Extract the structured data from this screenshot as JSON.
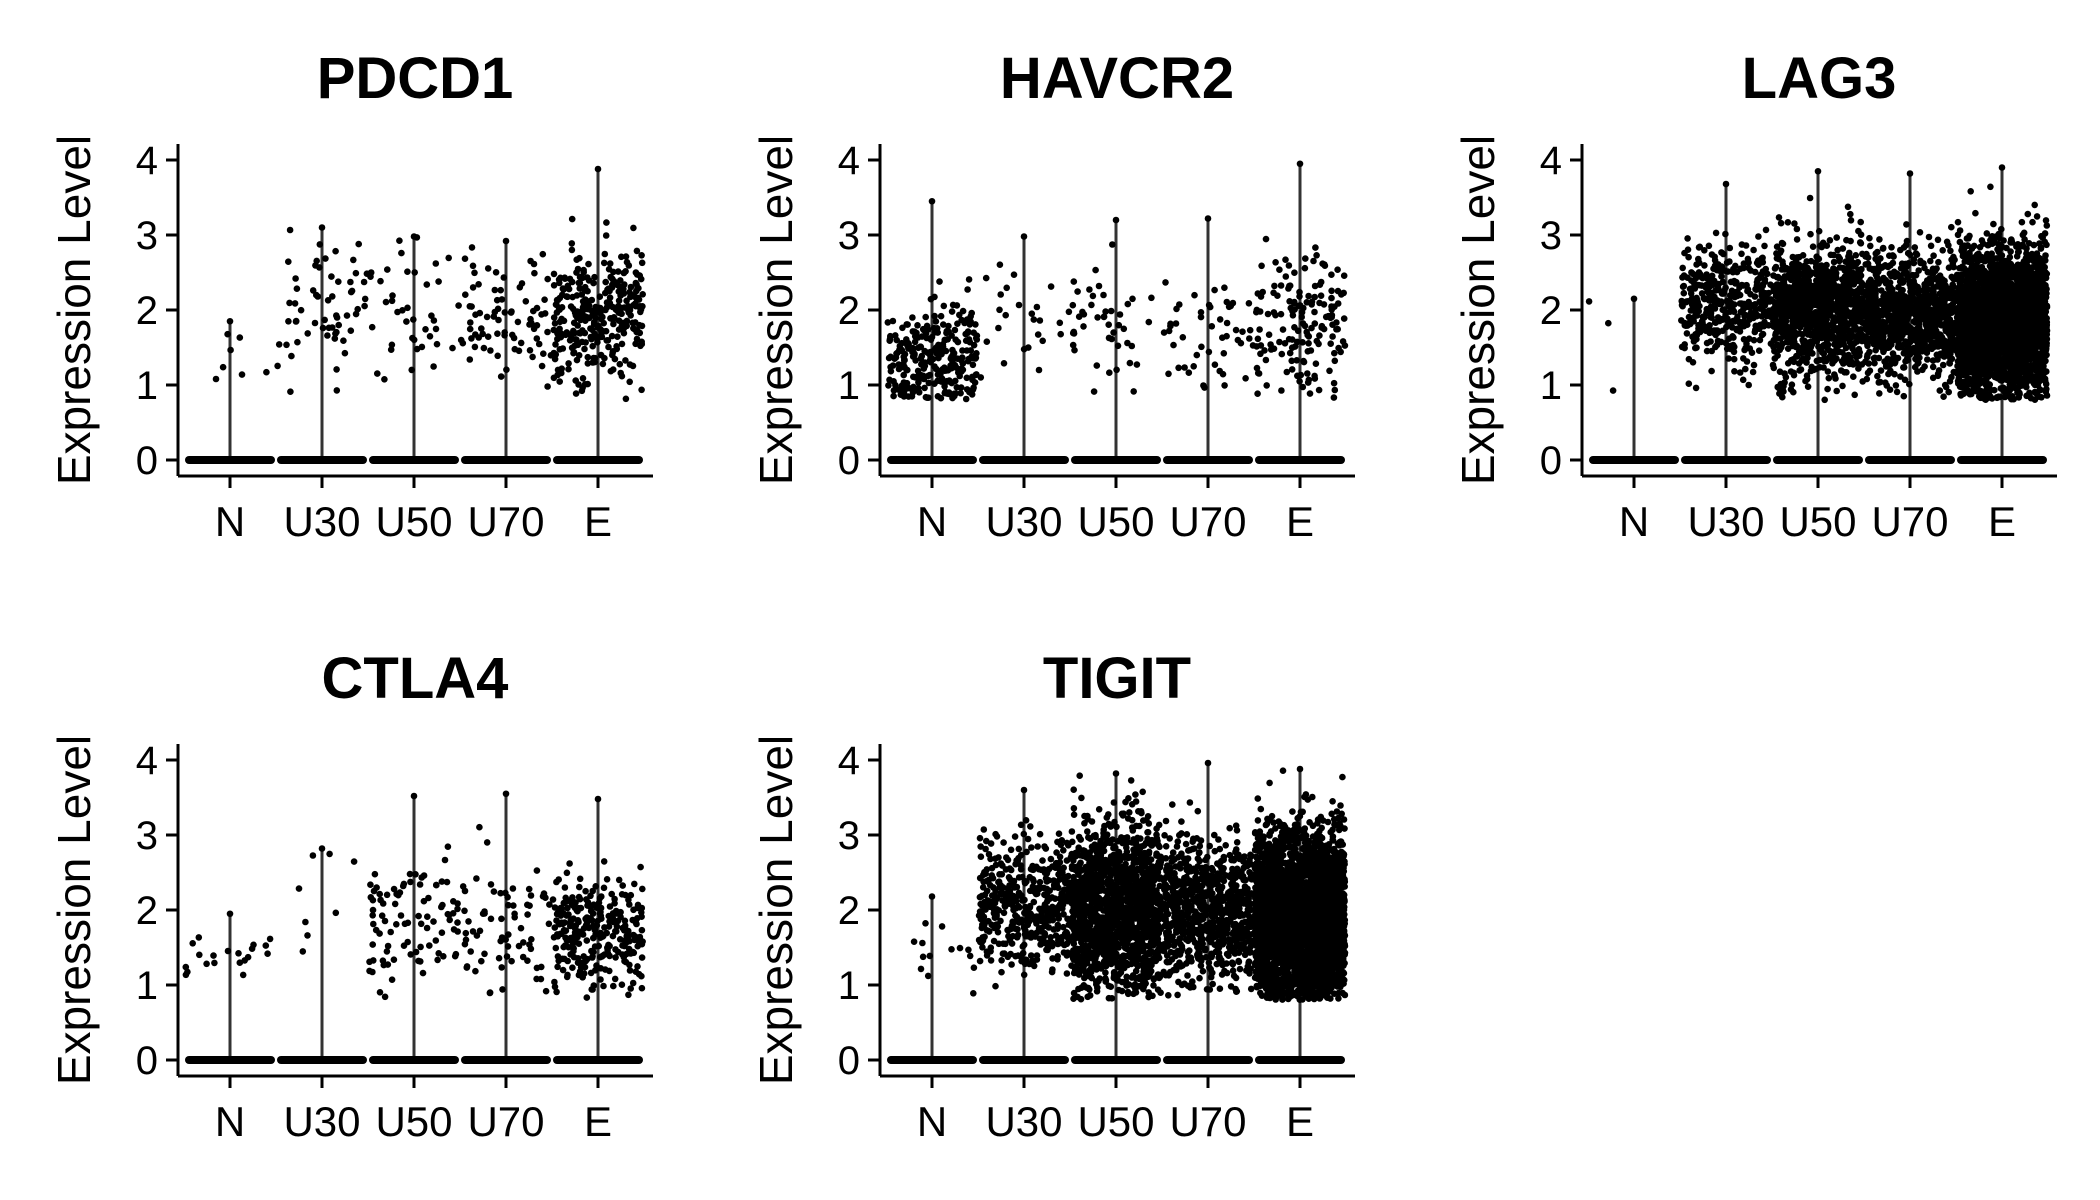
{
  "chart_data": [
    {
      "type": "scatter",
      "title": "PDCD1",
      "xlabel": "",
      "ylabel": "Expression Level",
      "categories": [
        "N",
        "U30",
        "U50",
        "U70",
        "E"
      ],
      "ylim": [
        0,
        4
      ],
      "yticks": [
        0,
        1,
        2,
        3,
        4
      ],
      "grid": false,
      "max": [
        1.85,
        3.1,
        2.98,
        2.92,
        3.88
      ],
      "positive": [
        {
          "count": 7,
          "center": 1.4,
          "spread": 0.25
        },
        {
          "count": 60,
          "center": 2.0,
          "spread": 0.45
        },
        {
          "count": 40,
          "center": 1.85,
          "spread": 0.5
        },
        {
          "count": 80,
          "center": 1.95,
          "spread": 0.4
        },
        {
          "count": 320,
          "center": 1.95,
          "spread": 0.45
        }
      ]
    },
    {
      "type": "scatter",
      "title": "HAVCR2",
      "xlabel": "",
      "ylabel": "Expression Level",
      "categories": [
        "N",
        "U30",
        "U50",
        "U70",
        "E"
      ],
      "ylim": [
        0,
        4
      ],
      "yticks": [
        0,
        1,
        2,
        3,
        4
      ],
      "grid": false,
      "max": [
        3.45,
        2.98,
        3.2,
        3.22,
        3.95
      ],
      "positive": [
        {
          "count": 280,
          "center": 1.35,
          "spread": 0.35
        },
        {
          "count": 25,
          "center": 1.9,
          "spread": 0.4
        },
        {
          "count": 45,
          "center": 1.75,
          "spread": 0.45
        },
        {
          "count": 50,
          "center": 1.7,
          "spread": 0.45
        },
        {
          "count": 160,
          "center": 1.8,
          "spread": 0.5
        }
      ]
    },
    {
      "type": "scatter",
      "title": "LAG3",
      "xlabel": "",
      "ylabel": "Expression Level",
      "categories": [
        "N",
        "U30",
        "U50",
        "U70",
        "E"
      ],
      "ylim": [
        0,
        4
      ],
      "yticks": [
        0,
        1,
        2,
        3,
        4
      ],
      "grid": false,
      "max": [
        2.15,
        3.68,
        3.85,
        3.82,
        3.9
      ],
      "positive": [
        {
          "count": 3,
          "center": 1.6,
          "spread": 0.4
        },
        {
          "count": 400,
          "center": 2.05,
          "spread": 0.38
        },
        {
          "count": 1100,
          "center": 2.0,
          "spread": 0.45
        },
        {
          "count": 900,
          "center": 1.95,
          "spread": 0.42
        },
        {
          "count": 2600,
          "center": 1.85,
          "spread": 0.48
        }
      ]
    },
    {
      "type": "scatter",
      "title": "CTLA4",
      "xlabel": "",
      "ylabel": "Expression Level",
      "categories": [
        "N",
        "U30",
        "U50",
        "U70",
        "E"
      ],
      "ylim": [
        0,
        4
      ],
      "yticks": [
        0,
        1,
        2,
        3,
        4
      ],
      "grid": false,
      "max": [
        1.95,
        2.82,
        3.52,
        3.55,
        3.48
      ],
      "positive": [
        {
          "count": 20,
          "center": 1.4,
          "spread": 0.2
        },
        {
          "count": 8,
          "center": 2.3,
          "spread": 0.4
        },
        {
          "count": 90,
          "center": 1.8,
          "spread": 0.45
        },
        {
          "count": 70,
          "center": 1.8,
          "spread": 0.45
        },
        {
          "count": 280,
          "center": 1.7,
          "spread": 0.42
        }
      ]
    },
    {
      "type": "scatter",
      "title": "TIGIT",
      "xlabel": "",
      "ylabel": "Expression Level",
      "categories": [
        "N",
        "U30",
        "U50",
        "U70",
        "E"
      ],
      "ylim": [
        0,
        4
      ],
      "yticks": [
        0,
        1,
        2,
        3,
        4
      ],
      "grid": false,
      "max": [
        2.18,
        3.6,
        3.82,
        3.96,
        3.88
      ],
      "positive": [
        {
          "count": 14,
          "center": 1.5,
          "spread": 0.25
        },
        {
          "count": 450,
          "center": 2.1,
          "spread": 0.42
        },
        {
          "count": 1500,
          "center": 2.0,
          "spread": 0.55
        },
        {
          "count": 800,
          "center": 2.0,
          "spread": 0.45
        },
        {
          "count": 3200,
          "center": 1.9,
          "spread": 0.55
        }
      ]
    }
  ]
}
